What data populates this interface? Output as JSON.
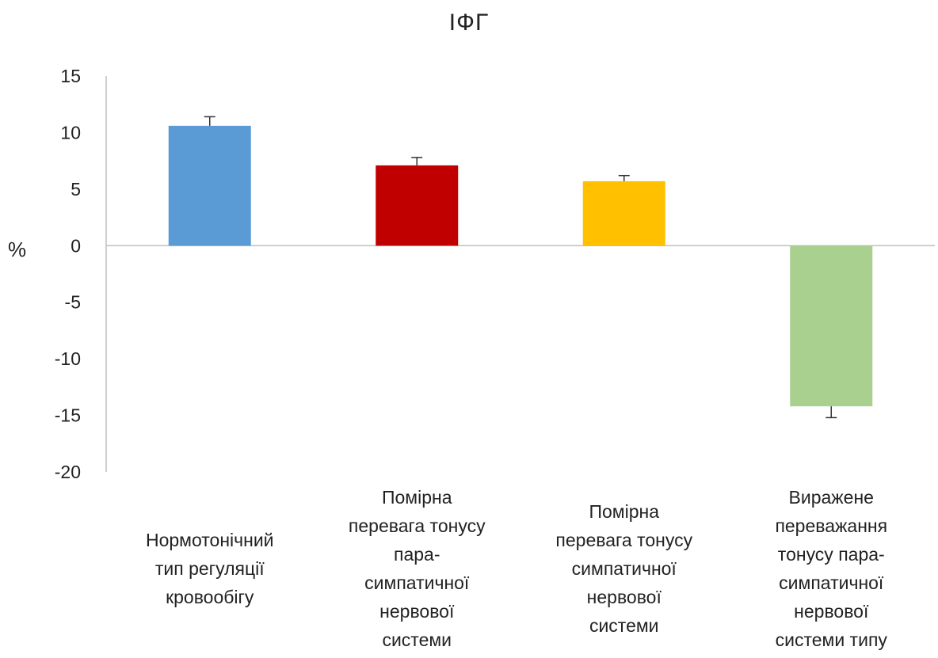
{
  "chart_data": {
    "type": "bar",
    "title": "ІФГ",
    "ylabel": "%",
    "xlabel": "",
    "ylim": [
      -20,
      15
    ],
    "yticks": [
      15,
      10,
      5,
      0,
      -5,
      -10,
      -15,
      -20
    ],
    "grid": false,
    "legend": "none",
    "categories": [
      "Нормотонічний\nтип регуляції\nкровообігу",
      "Помірна\nперевага тонусу\nпара-\nсимпатичної\nнервової\nсистеми",
      "Помірна\nперевага тонусу\nсимпатичної\nнервової\nсистеми",
      "Виражене\nпереважання\nтонусу пара-\nсимпатичної\nнервової\nсистеми типу"
    ],
    "values": [
      10.6,
      7.1,
      5.7,
      -14.2
    ],
    "errors": [
      0.8,
      0.7,
      0.5,
      1.0
    ],
    "colors": [
      "#5B9BD5",
      "#C00000",
      "#FFC000",
      "#A9D08E"
    ]
  }
}
